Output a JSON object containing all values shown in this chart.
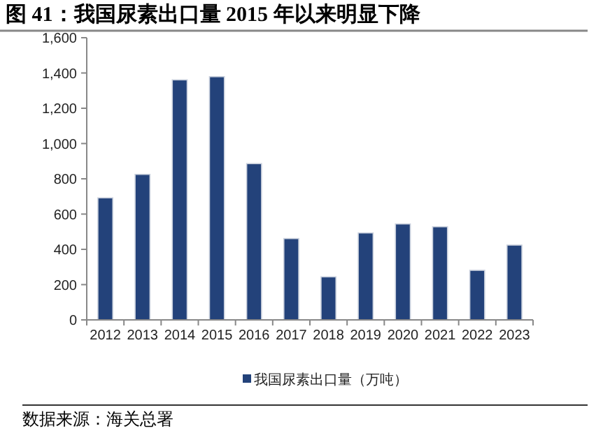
{
  "chart_data": {
    "type": "bar",
    "title": "图 41：我国尿素出口量 2015 年以来明显下降",
    "categories": [
      "2012",
      "2013",
      "2014",
      "2015",
      "2016",
      "2017",
      "2018",
      "2019",
      "2020",
      "2021",
      "2022",
      "2023"
    ],
    "series": [
      {
        "name": "我国尿素出口量（万吨）",
        "color": "#23427a",
        "values": [
          692,
          825,
          1361,
          1379,
          886,
          461,
          244,
          493,
          544,
          528,
          281,
          424
        ]
      }
    ],
    "ylim": [
      0,
      1600
    ],
    "yticks": [
      {
        "value": 0,
        "label": "0"
      },
      {
        "value": 200,
        "label": "200"
      },
      {
        "value": 400,
        "label": "400"
      },
      {
        "value": 600,
        "label": "600"
      },
      {
        "value": 800,
        "label": "800"
      },
      {
        "value": 1000,
        "label": "1,000"
      },
      {
        "value": 1200,
        "label": "1,200"
      },
      {
        "value": 1400,
        "label": "1,400"
      },
      {
        "value": 1600,
        "label": "1,600"
      }
    ],
    "grid": false,
    "legend": "bottom",
    "annotations": [
      "数据来源：海关总署"
    ]
  }
}
